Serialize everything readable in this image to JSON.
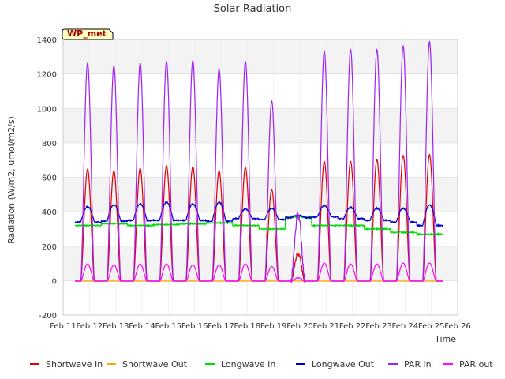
{
  "chart_data": {
    "type": "line",
    "title": "Solar Radiation",
    "xlabel": "Time",
    "ylabel": "Radiation (W/m2, umol/m2/s)",
    "annotation": "WP_met",
    "xlim": [
      11,
      26
    ],
    "ylim": [
      -200,
      1400
    ],
    "yticks": [
      -200,
      0,
      200,
      400,
      600,
      800,
      1000,
      1200,
      1400
    ],
    "xticks": [
      {
        "day": 11,
        "label": "Feb 11"
      },
      {
        "day": 12,
        "label": "Feb 12"
      },
      {
        "day": 13,
        "label": "Feb 13"
      },
      {
        "day": 14,
        "label": "Feb 14"
      },
      {
        "day": 15,
        "label": "Feb 15"
      },
      {
        "day": 16,
        "label": "Feb 16"
      },
      {
        "day": 17,
        "label": "Feb 17"
      },
      {
        "day": 18,
        "label": "Feb 18"
      },
      {
        "day": 19,
        "label": "Feb 19"
      },
      {
        "day": 20,
        "label": "Feb 20"
      },
      {
        "day": 21,
        "label": "Feb 21"
      },
      {
        "day": 22,
        "label": "Feb 22"
      },
      {
        "day": 23,
        "label": "Feb 23"
      },
      {
        "day": 24,
        "label": "Feb 24"
      },
      {
        "day": 25,
        "label": "Feb 25"
      },
      {
        "day": 26,
        "label": "Feb 26"
      }
    ],
    "grid": true,
    "background_bands": "alternating light gray",
    "legend_position": "bottom",
    "days": [
      11.4,
      12.4,
      13.4,
      14.4,
      15.4,
      16.4,
      17.4,
      18.4,
      19.4,
      20.4,
      21.4,
      22.4,
      23.4,
      24.4
    ],
    "series": [
      {
        "name": "Shortwave In",
        "color": "#dd0000",
        "kind": "diurnal",
        "daily_peak": [
          650,
          640,
          655,
          670,
          665,
          640,
          660,
          530,
          160,
          695,
          695,
          705,
          730,
          735
        ]
      },
      {
        "name": "Shortwave Out",
        "color": "#ffa500",
        "kind": "diurnal",
        "daily_peak": [
          0,
          0,
          0,
          0,
          0,
          0,
          0,
          0,
          0,
          0,
          0,
          0,
          0,
          0
        ]
      },
      {
        "name": "Longwave In",
        "color": "#00dd00",
        "kind": "continuous",
        "daily_level": [
          320,
          330,
          320,
          325,
          330,
          335,
          320,
          300,
          370,
          320,
          320,
          300,
          280,
          270,
          290
        ]
      },
      {
        "name": "Longwave Out",
        "color": "#0000cc",
        "kind": "continuous",
        "daily_level": [
          340,
          345,
          350,
          350,
          350,
          345,
          360,
          355,
          365,
          370,
          360,
          350,
          340,
          320,
          330
        ],
        "daily_peak": [
          430,
          440,
          445,
          455,
          445,
          455,
          415,
          420,
          380,
          435,
          425,
          420,
          420,
          440
        ]
      },
      {
        "name": "PAR in",
        "color": "#a020f0",
        "kind": "diurnal",
        "daily_peak": [
          1265,
          1250,
          1265,
          1275,
          1280,
          1230,
          1275,
          1045,
          390,
          1335,
          1345,
          1345,
          1365,
          1390
        ]
      },
      {
        "name": "PAR out",
        "color": "#ff00ff",
        "kind": "diurnal",
        "daily_peak": [
          100,
          95,
          100,
          100,
          95,
          95,
          100,
          85,
          20,
          105,
          100,
          100,
          105,
          105
        ]
      }
    ]
  }
}
